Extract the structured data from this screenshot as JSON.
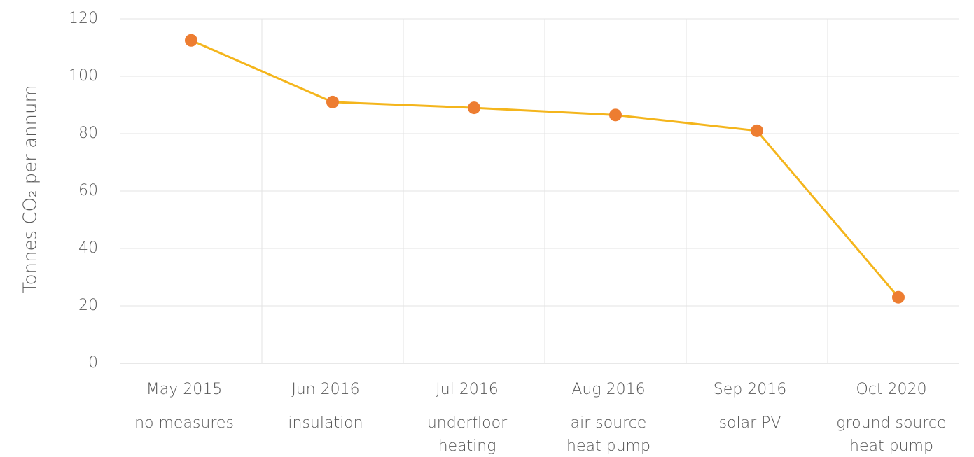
{
  "chart_data": {
    "type": "line",
    "y_label": "Tonnes CO₂ per annum",
    "categories": [
      "May 2015",
      "Jun 2016",
      "Jul 2016",
      "Aug 2016",
      "Sep 2016",
      "Oct 2020"
    ],
    "category_descriptions": [
      [
        "no measures"
      ],
      [
        "insulation"
      ],
      [
        "underfloor",
        "heating"
      ],
      [
        "air source",
        "heat pump"
      ],
      [
        "solar PV"
      ],
      [
        "ground source",
        "heat pump"
      ]
    ],
    "series": [
      {
        "name": "Tonnes CO₂ per annum",
        "color": "#f4b51c",
        "marker_color": "#ed7d31",
        "values": [
          112.5,
          91,
          89,
          86.5,
          81,
          23
        ]
      }
    ],
    "ylim": [
      0,
      120
    ],
    "yticks": [
      0,
      20,
      40,
      60,
      80,
      100,
      120
    ],
    "grid": true
  }
}
